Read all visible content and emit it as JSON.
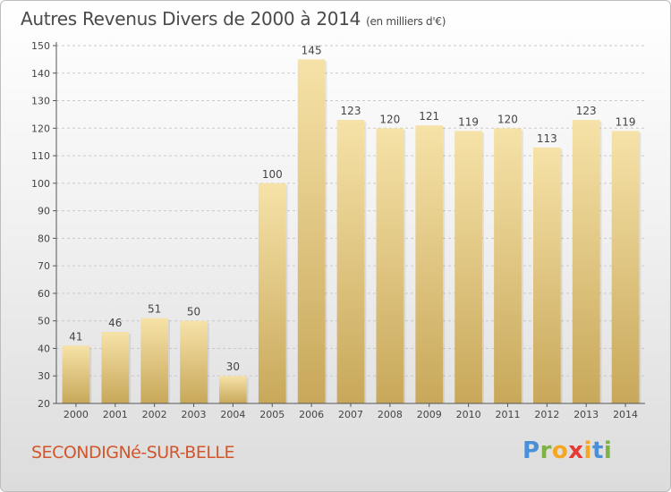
{
  "header": {
    "title": "Autres Revenus Divers de 2000 à 2014",
    "unit_note": "(en milliers d'€)"
  },
  "footer": {
    "commune": "SECONDIGNé-SUR-BELLE",
    "logo_letters": [
      "P",
      "r",
      "o",
      "x",
      "i",
      "t",
      "i"
    ],
    "logo_colors": [
      "#4a90d9",
      "#7cb342",
      "#f5a623",
      "#e53935",
      "#f5a623",
      "#4a90d9",
      "#7cb342"
    ]
  },
  "chart_data": {
    "type": "bar",
    "categories": [
      "2000",
      "2001",
      "2002",
      "2003",
      "2004",
      "2005",
      "2006",
      "2007",
      "2008",
      "2009",
      "2010",
      "2011",
      "2012",
      "2013",
      "2014"
    ],
    "values": [
      41,
      46,
      51,
      50,
      30,
      100,
      145,
      123,
      120,
      121,
      119,
      120,
      113,
      123,
      119
    ],
    "title": "Autres Revenus Divers de 2000 à 2014",
    "ylim": [
      20,
      150
    ],
    "yticks": [
      20,
      30,
      40,
      50,
      60,
      70,
      80,
      90,
      100,
      110,
      120,
      130,
      140,
      150
    ],
    "grid": true,
    "bar_color_light": "#f6e2a8",
    "bar_color_dark": "#c8a85a"
  }
}
